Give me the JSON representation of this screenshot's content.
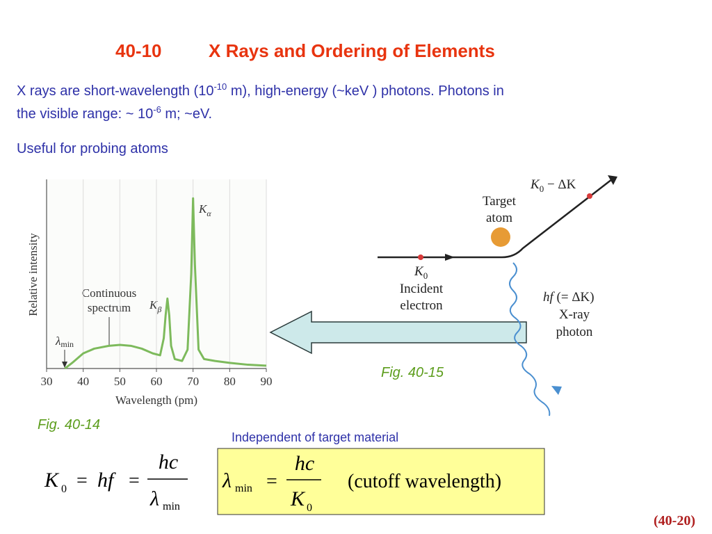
{
  "header": {
    "number": "40-10",
    "title": "X Rays and Ordering of Elements"
  },
  "body": {
    "line1": [
      "X rays are short-wavelength (10",
      "-10",
      " m), high-energy (~keV ) photons. Photons in"
    ],
    "line2": [
      "the visible range: ~ 10",
      "-6",
      " m; ~eV."
    ],
    "line3": "Useful for probing atoms"
  },
  "chart_data": {
    "type": "line",
    "x_label": "Wavelength (pm)",
    "y_label": "Relative intensity",
    "x": [
      35,
      37,
      40,
      43,
      47,
      50,
      53,
      56,
      59,
      61,
      62,
      62.5,
      63,
      63.5,
      64,
      65,
      67,
      68.5,
      69.5,
      70,
      70.5,
      71.5,
      73,
      76,
      80,
      85,
      90
    ],
    "values": [
      0,
      3,
      8,
      10.5,
      12,
      12.5,
      12,
      10.5,
      8,
      7,
      16,
      28,
      37,
      28,
      12,
      5,
      4,
      10,
      50,
      90,
      55,
      10,
      5,
      4,
      3,
      2,
      1.5
    ],
    "color": "#7dba5c",
    "xlim": [
      30,
      90
    ],
    "xticks": [
      30,
      40,
      50,
      60,
      70,
      80,
      90
    ],
    "ylim": [
      0,
      100
    ],
    "grid": true,
    "annotations": {
      "k_alpha": [
        "K",
        "α"
      ],
      "k_beta": [
        "K",
        "β"
      ],
      "continuous": [
        "Continuous",
        "spectrum"
      ],
      "lambda_min": [
        "λ",
        "min"
      ]
    },
    "caption": "Fig. 40-14"
  },
  "diagram": {
    "outgoing": [
      "K",
      "0",
      " − ΔK"
    ],
    "target": [
      "Target",
      "atom"
    ],
    "incident_k": [
      "K",
      "0"
    ],
    "incident": [
      "Incident",
      "electron"
    ],
    "photon_energy": [
      "hf",
      " (= ΔK)"
    ],
    "photon": [
      "X-ray",
      "photon"
    ],
    "caption": "Fig. 40-15"
  },
  "note": "Independent of target material",
  "equation_left": [
    "K",
    "0",
    "=",
    "hf",
    "=",
    "hc",
    "λ",
    "min"
  ],
  "equation_box": [
    "λ",
    "min",
    "=",
    "hc",
    "K",
    "0",
    "(cutoff wavelength)"
  ],
  "equation_number": "(40-20)"
}
